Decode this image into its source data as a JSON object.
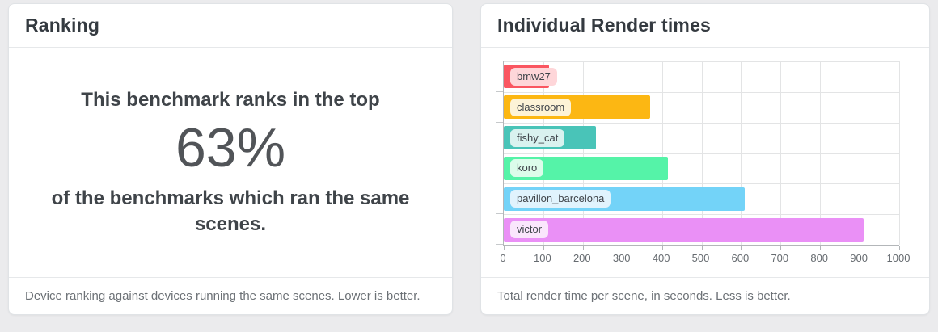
{
  "ranking_card": {
    "title": "Ranking",
    "intro": "This benchmark ranks in the top",
    "percentile": "63%",
    "outro": "of the benchmarks which ran the same scenes.",
    "footer": "Device ranking against devices running the same scenes. Lower is better."
  },
  "render_card": {
    "title": "Individual Render times",
    "footer": "Total render time per scene, in seconds. Less is better."
  },
  "chart_data": {
    "type": "bar",
    "orientation": "horizontal",
    "title": "Individual Render times",
    "xlabel": "",
    "ylabel": "",
    "unit": "seconds",
    "xlim": [
      0,
      1000
    ],
    "x_ticks": [
      "0",
      "100",
      "200",
      "300",
      "400",
      "500",
      "600",
      "700",
      "800",
      "900",
      "1000"
    ],
    "grid": true,
    "legend": false,
    "categories": [
      "bmw27",
      "classroom",
      "fishy_cat",
      "koro",
      "pavillon_barcelona",
      "victor"
    ],
    "values": [
      114,
      371,
      233,
      415,
      610,
      909
    ],
    "series": [
      {
        "label": "bmw27",
        "value": 114,
        "bar_color": "#fa5661",
        "label_bg": "#fed6d9"
      },
      {
        "label": "classroom",
        "value": 371,
        "bar_color": "#fcb713",
        "label_bg": "#fdf3d7"
      },
      {
        "label": "fishy_cat",
        "value": 233,
        "bar_color": "#49c4b8",
        "label_bg": "#d9f2ef"
      },
      {
        "label": "koro",
        "value": 415,
        "bar_color": "#55f3a8",
        "label_bg": "#dcfcea"
      },
      {
        "label": "pavillon_barcelona",
        "value": 610,
        "bar_color": "#73d3f8",
        "label_bg": "#e0f3fd"
      },
      {
        "label": "victor",
        "value": 909,
        "bar_color": "#ea90f6",
        "label_bg": "#fae6fc"
      }
    ],
    "colors": {
      "grid": "#e3e4e5",
      "axis": "#b3b6b9",
      "tick_label": "#666b70",
      "bar_label_text": "#3f444a"
    }
  }
}
